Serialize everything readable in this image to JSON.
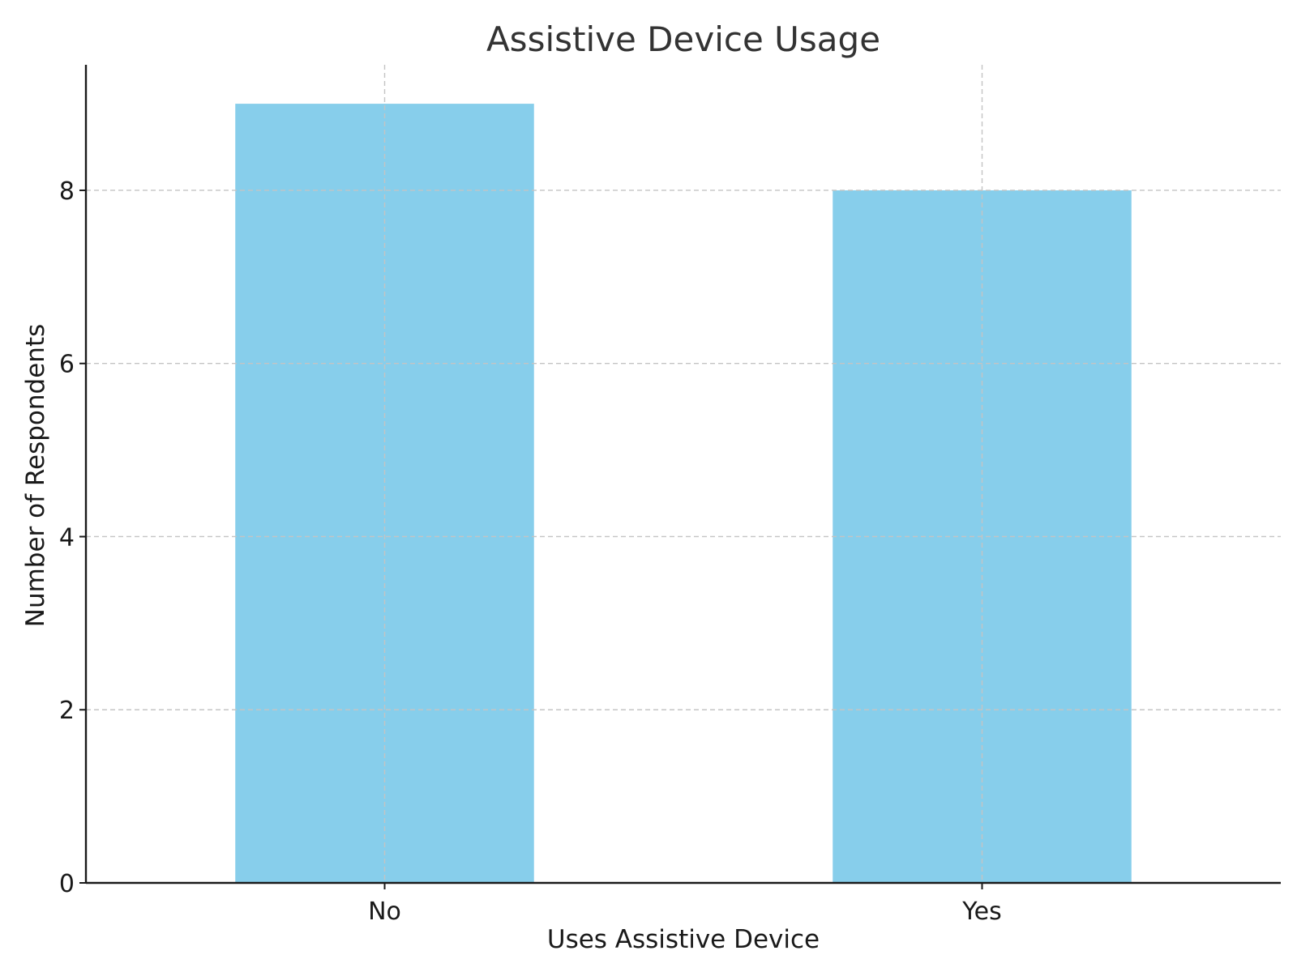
{
  "chart_data": {
    "type": "bar",
    "title": "Assistive Device Usage",
    "xlabel": "Uses Assistive Device",
    "ylabel": "Number of Respondents",
    "categories": [
      "No",
      "Yes"
    ],
    "values": [
      9,
      8
    ],
    "ylim": [
      0,
      9.45
    ],
    "yticks": [
      0,
      2,
      4,
      6,
      8
    ],
    "ytick_labels": [
      "0",
      "2",
      "4",
      "6",
      "8"
    ],
    "grid": true,
    "bar_color": "#87CEEB"
  }
}
